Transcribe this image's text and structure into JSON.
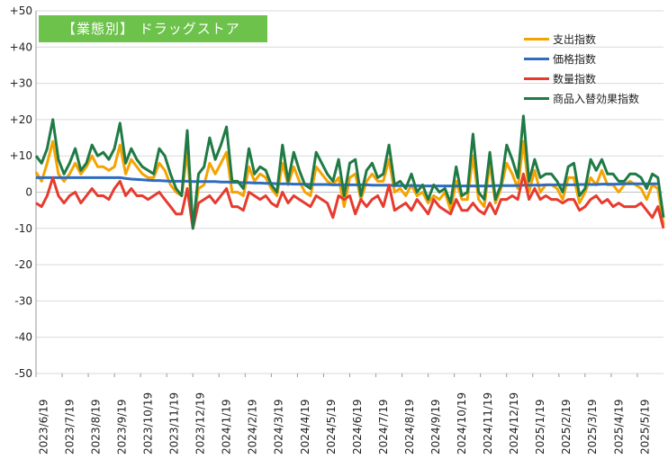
{
  "chart_data": {
    "type": "line",
    "title": "【業態別】 ドラッグストア",
    "xlabel": "",
    "ylabel": "",
    "ylim": [
      -50,
      50
    ],
    "yticks": [
      "+50",
      "+40",
      "+30",
      "+20",
      "+10",
      "0",
      "-10",
      "-20",
      "-30",
      "-40",
      "-50"
    ],
    "xtick_labels": [
      "2023/6/19",
      "2023/7/19",
      "2023/8/19",
      "2023/9/19",
      "2023/10/19",
      "2023/11/19",
      "2023/12/19",
      "2024/1/19",
      "2024/2/19",
      "2024/3/19",
      "2024/4/19",
      "2024/5/19",
      "2024/6/19",
      "2024/7/19",
      "2024/8/19",
      "2024/9/19",
      "2024/10/19",
      "2024/11/19",
      "2024/12/19",
      "2025/1/19",
      "2025/2/19",
      "2025/3/19",
      "2025/4/19",
      "2025/5/19"
    ],
    "legend_position": "top-right",
    "colors": {
      "spend": "#f5a300",
      "price": "#2e6cc0",
      "quantity": "#e63b2e",
      "mix": "#1f7a45"
    },
    "series": [
      {
        "name": "支出指数",
        "color": "#f5a300",
        "values": [
          5.5,
          3,
          8,
          14,
          5,
          3,
          5,
          8,
          5,
          7,
          10,
          7,
          7,
          6,
          7,
          13,
          5,
          9,
          7,
          5,
          4,
          4,
          8,
          6,
          2,
          0,
          -1,
          11,
          -9,
          1,
          2,
          8,
          5,
          8,
          11,
          0,
          0,
          -1,
          7,
          3,
          5,
          4,
          1,
          -1,
          8,
          2,
          7,
          3,
          0,
          -1,
          7,
          5,
          3,
          2,
          4,
          -4,
          4,
          5,
          -2,
          3,
          5,
          3,
          3,
          9,
          0,
          1,
          -1,
          2,
          -1,
          0,
          -3,
          -1,
          -2,
          0,
          -5,
          3,
          -2,
          -2,
          10,
          -2,
          -4,
          8,
          -3,
          1,
          8,
          5,
          1,
          14,
          0,
          6,
          0,
          2,
          2,
          1,
          -2,
          4,
          4,
          -3,
          0,
          4,
          2,
          6,
          2,
          2,
          0,
          2,
          3,
          2,
          1,
          -2,
          2,
          1,
          -9
        ]
      },
      {
        "name": "価格指数",
        "color": "#2e6cc0",
        "values": [
          4,
          4,
          4,
          4,
          4,
          4,
          4,
          4,
          4,
          4,
          4,
          4,
          4,
          4,
          4,
          4,
          3.8,
          3.6,
          3.5,
          3.4,
          3.3,
          3.2,
          3.2,
          3.1,
          3,
          3,
          3,
          3,
          2.9,
          2.9,
          2.9,
          2.9,
          2.9,
          2.8,
          2.8,
          2.7,
          2.7,
          2.6,
          2.6,
          2.5,
          2.5,
          2.4,
          2.4,
          2.3,
          2.3,
          2.3,
          2.2,
          2.2,
          2.2,
          2.1,
          2.1,
          2.1,
          2.1,
          2,
          2,
          2,
          2,
          2,
          2,
          2,
          1.9,
          1.9,
          1.9,
          1.9,
          1.8,
          1.8,
          1.8,
          1.8,
          1.8,
          1.7,
          1.7,
          1.7,
          1.7,
          1.7,
          1.7,
          1.7,
          1.7,
          1.7,
          1.7,
          1.7,
          1.7,
          1.7,
          1.8,
          1.8,
          1.8,
          1.8,
          1.8,
          1.9,
          1.9,
          1.9,
          1.9,
          2,
          2,
          2,
          2,
          2,
          2,
          2.1,
          2.1,
          2.1,
          2.1,
          2.2,
          2.2,
          2.2,
          2.2,
          2.3,
          2.3,
          2.3,
          2.3,
          2.3,
          2.3,
          2.3
        ]
      },
      {
        "name": "数量指数",
        "color": "#e63b2e",
        "values": [
          -3,
          -4,
          -1,
          4,
          -1,
          -3,
          -1,
          0,
          -3,
          -1,
          1,
          -1,
          -1,
          -2,
          1,
          3,
          -1,
          1,
          -1,
          -1,
          -2,
          -1,
          0,
          -2,
          -4,
          -6,
          -6,
          1,
          -10,
          -3,
          -2,
          -1,
          -3,
          -1,
          1,
          -4,
          -4,
          -5,
          0,
          -1,
          -2,
          -1,
          -3,
          -4,
          0,
          -3,
          -1,
          -2,
          -3,
          -4,
          -1,
          -2,
          -3,
          -7,
          -1,
          -2,
          -1,
          -6,
          -2,
          -4,
          -2,
          -1,
          -4,
          2,
          -5,
          -4,
          -3,
          -5,
          -2,
          -4,
          -6,
          -2,
          -4,
          -5,
          -6,
          -2,
          -5,
          -5,
          -3,
          -5,
          -6,
          -3,
          -6,
          -2,
          -2,
          -1,
          -2,
          5,
          -2,
          1,
          -2,
          -1,
          -2,
          -2,
          -3,
          -2,
          -2,
          -5,
          -4,
          -2,
          -1,
          -3,
          -2,
          -4,
          -3,
          -4,
          -4,
          -4,
          -3,
          -5,
          -7,
          -4,
          -10
        ]
      },
      {
        "name": "商品入替効果指数",
        "color": "#1f7a45",
        "values": [
          10,
          8,
          12,
          20,
          9,
          5,
          8,
          12,
          6,
          8,
          13,
          10,
          11,
          9,
          12,
          19,
          8,
          12,
          9,
          7,
          6,
          5,
          12,
          10,
          5,
          1,
          -1,
          17,
          -10,
          5,
          7,
          15,
          9,
          13,
          18,
          3,
          3,
          1,
          12,
          5,
          7,
          6,
          2,
          0,
          13,
          3,
          11,
          6,
          2,
          1,
          11,
          8,
          5,
          3,
          9,
          -1,
          8,
          9,
          -1,
          6,
          8,
          4,
          5,
          13,
          2,
          3,
          1,
          5,
          0,
          2,
          -2,
          2,
          0,
          1,
          -3,
          7,
          -1,
          0,
          16,
          0,
          -2,
          11,
          -2,
          2,
          13,
          9,
          4,
          21,
          3,
          9,
          4,
          5,
          5,
          3,
          0,
          7,
          8,
          -1,
          1,
          9,
          6,
          9,
          5,
          5,
          3,
          3,
          5,
          5,
          4,
          1,
          5,
          4,
          -7
        ]
      }
    ]
  }
}
